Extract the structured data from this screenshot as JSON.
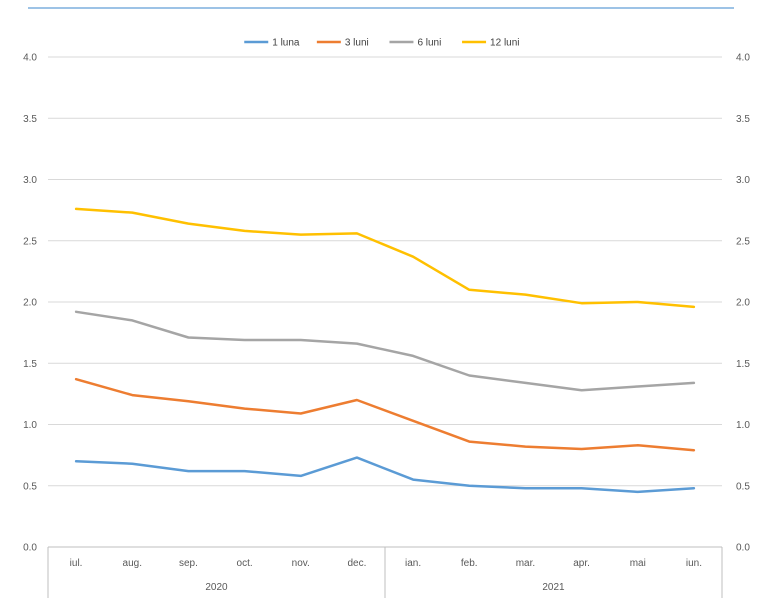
{
  "chart_data": {
    "type": "line",
    "categories": [
      "iul.",
      "aug.",
      "sep.",
      "oct.",
      "nov.",
      "dec.",
      "ian.",
      "feb.",
      "mar.",
      "apr.",
      "mai",
      "iun."
    ],
    "groups": [
      {
        "label": "2020",
        "from": 0,
        "to": 5
      },
      {
        "label": "2021",
        "from": 6,
        "to": 11
      }
    ],
    "series": [
      {
        "name": "1 luna",
        "color": "#5B9BD5",
        "values": [
          0.7,
          0.68,
          0.62,
          0.62,
          0.58,
          0.73,
          0.55,
          0.5,
          0.48,
          0.48,
          0.45,
          0.48
        ]
      },
      {
        "name": "3 luni",
        "color": "#ED7D31",
        "values": [
          1.37,
          1.24,
          1.19,
          1.13,
          1.09,
          1.2,
          1.03,
          0.86,
          0.82,
          0.8,
          0.83,
          0.79
        ]
      },
      {
        "name": "6 luni",
        "color": "#A5A5A5",
        "values": [
          1.92,
          1.85,
          1.71,
          1.69,
          1.69,
          1.66,
          1.56,
          1.4,
          1.34,
          1.28,
          1.31,
          1.34
        ]
      },
      {
        "name": "12 luni",
        "color": "#FFC000",
        "values": [
          2.76,
          2.73,
          2.64,
          2.58,
          2.55,
          2.56,
          2.37,
          2.1,
          2.06,
          1.99,
          2.0,
          1.96
        ]
      }
    ],
    "ylim": [
      0,
      4
    ],
    "yticks": [
      "0.0",
      "0.5",
      "1.0",
      "1.5",
      "2.0",
      "2.5",
      "3.0",
      "3.5",
      "4.0"
    ],
    "secondary_yticks": [
      "0.0",
      "0.5",
      "1.0",
      "1.5",
      "2.0",
      "2.5",
      "3.0",
      "3.5",
      "4.0"
    ],
    "grid": true,
    "legend_position": "top-center",
    "title": "",
    "xlabel": "",
    "ylabel": ""
  }
}
